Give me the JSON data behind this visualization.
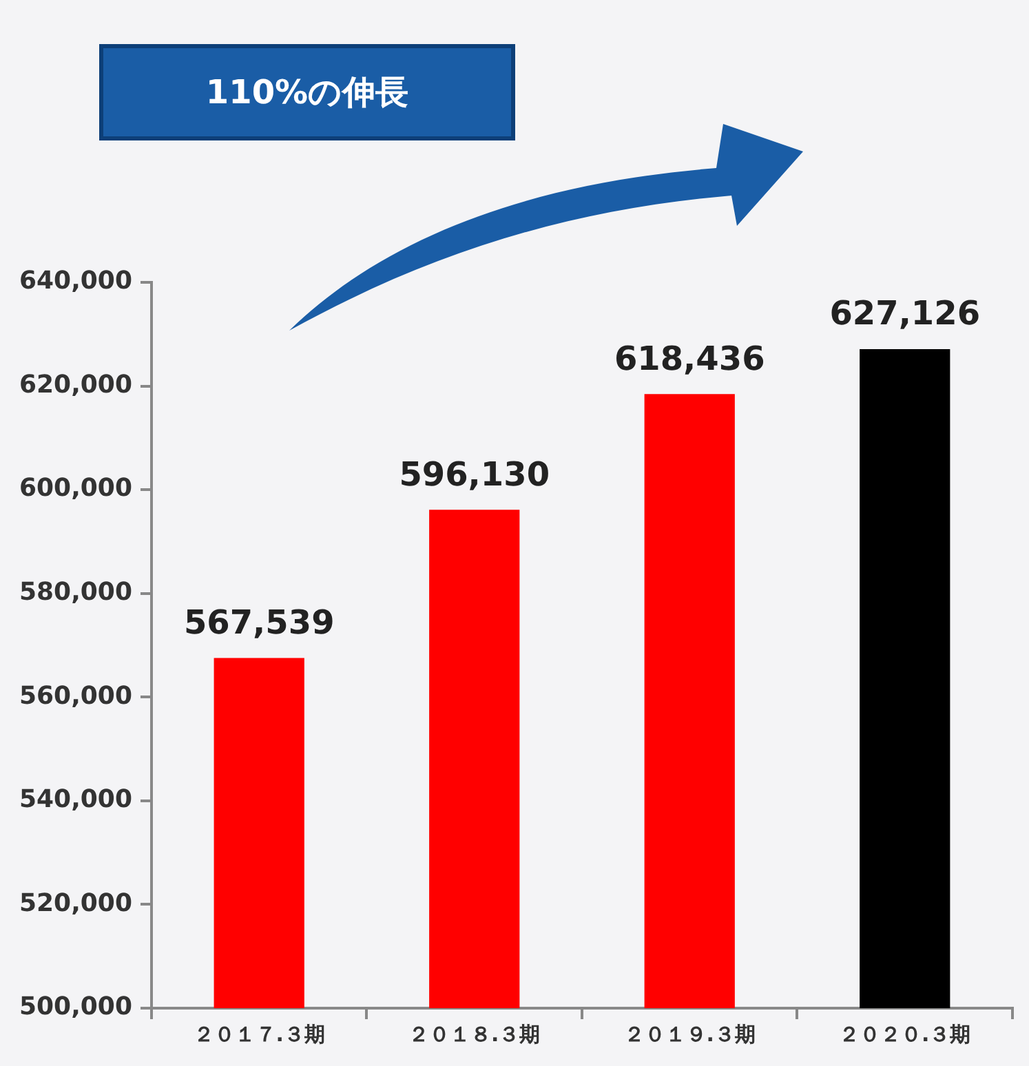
{
  "chart_data": {
    "type": "bar",
    "categories": [
      "２０１７.３期",
      "２０１８.３期",
      "２０１９.３期",
      "２０２０.３期"
    ],
    "values": [
      567539,
      596130,
      618436,
      627126
    ],
    "value_labels": [
      "567,539",
      "596,130",
      "618,436",
      "627,126"
    ],
    "colors": [
      "#ff0000",
      "#ff0000",
      "#ff0000",
      "#000000"
    ],
    "ylim": [
      500000,
      640000
    ],
    "yticks": [
      {
        "value": 500000,
        "label": "500,000"
      },
      {
        "value": 520000,
        "label": "520,000"
      },
      {
        "value": 540000,
        "label": "540,000"
      },
      {
        "value": 560000,
        "label": "560,000"
      },
      {
        "value": 580000,
        "label": "580,000"
      },
      {
        "value": 600000,
        "label": "600,000"
      },
      {
        "value": 620000,
        "label": "620,000"
      },
      {
        "value": 640000,
        "label": "640,000"
      }
    ],
    "grid": false,
    "legend": false,
    "annotations": [
      "110%の伸長"
    ]
  }
}
